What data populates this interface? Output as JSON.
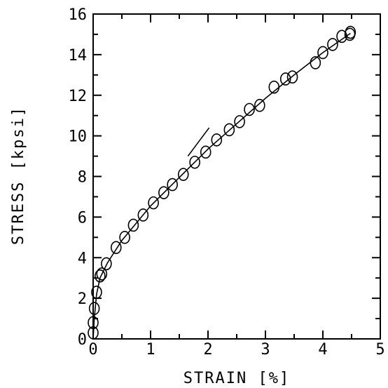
{
  "chart_data": {
    "type": "scatter",
    "title": "",
    "xlabel": "STRAIN [%]",
    "ylabel": "STRESS [kpsi]",
    "xlim": [
      0,
      5
    ],
    "ylim": [
      0,
      16
    ],
    "x_ticks": [
      "0",
      "1",
      "2",
      "3",
      "4",
      "5"
    ],
    "y_ticks": [
      "0",
      "2",
      "4",
      "6",
      "8",
      "10",
      "12",
      "14",
      "16"
    ],
    "grid": false,
    "legend": "none",
    "series": [
      {
        "values": [
          {
            "x": 0.0,
            "y": 0.3
          },
          {
            "x": 0.0,
            "y": 0.8
          },
          {
            "x": 0.02,
            "y": 1.5
          },
          {
            "x": 0.06,
            "y": 2.3
          },
          {
            "x": 0.12,
            "y": 3.1
          },
          {
            "x": 0.15,
            "y": 3.2
          },
          {
            "x": 0.23,
            "y": 3.7
          },
          {
            "x": 0.4,
            "y": 4.5
          },
          {
            "x": 0.55,
            "y": 5.0
          },
          {
            "x": 0.7,
            "y": 5.6
          },
          {
            "x": 0.87,
            "y": 6.1
          },
          {
            "x": 1.05,
            "y": 6.7
          },
          {
            "x": 1.23,
            "y": 7.2
          },
          {
            "x": 1.38,
            "y": 7.6
          },
          {
            "x": 1.57,
            "y": 8.1
          },
          {
            "x": 1.77,
            "y": 8.7
          },
          {
            "x": 1.96,
            "y": 9.2
          },
          {
            "x": 2.15,
            "y": 9.8
          },
          {
            "x": 2.37,
            "y": 10.3
          },
          {
            "x": 2.55,
            "y": 10.7
          },
          {
            "x": 2.72,
            "y": 11.3
          },
          {
            "x": 2.9,
            "y": 11.5
          },
          {
            "x": 3.15,
            "y": 12.4
          },
          {
            "x": 3.35,
            "y": 12.8
          },
          {
            "x": 3.47,
            "y": 12.9
          },
          {
            "x": 3.87,
            "y": 13.6
          },
          {
            "x": 4.0,
            "y": 14.1
          },
          {
            "x": 4.17,
            "y": 14.5
          },
          {
            "x": 4.33,
            "y": 14.9
          },
          {
            "x": 4.47,
            "y": 15.0
          },
          {
            "x": 4.48,
            "y": 15.1
          }
        ]
      }
    ],
    "fit_line": [
      {
        "x": 0.0,
        "y": 0.0
      },
      {
        "x": 0.02,
        "y": 1.0
      },
      {
        "x": 0.06,
        "y": 2.2
      },
      {
        "x": 0.12,
        "y": 3.0
      },
      {
        "x": 0.25,
        "y": 3.75
      },
      {
        "x": 0.5,
        "y": 4.85
      },
      {
        "x": 1.0,
        "y": 6.55
      },
      {
        "x": 1.5,
        "y": 7.95
      },
      {
        "x": 2.0,
        "y": 9.35
      },
      {
        "x": 2.5,
        "y": 10.6
      },
      {
        "x": 3.0,
        "y": 11.85
      },
      {
        "x": 3.5,
        "y": 13.0
      },
      {
        "x": 4.0,
        "y": 14.1
      },
      {
        "x": 4.48,
        "y": 15.05
      }
    ],
    "arrow": {
      "from": {
        "x": 1.65,
        "y": 9.0
      },
      "to": {
        "x": 2.02,
        "y": 10.4
      }
    },
    "marker_color": "#000000",
    "line_color": "#000000"
  }
}
